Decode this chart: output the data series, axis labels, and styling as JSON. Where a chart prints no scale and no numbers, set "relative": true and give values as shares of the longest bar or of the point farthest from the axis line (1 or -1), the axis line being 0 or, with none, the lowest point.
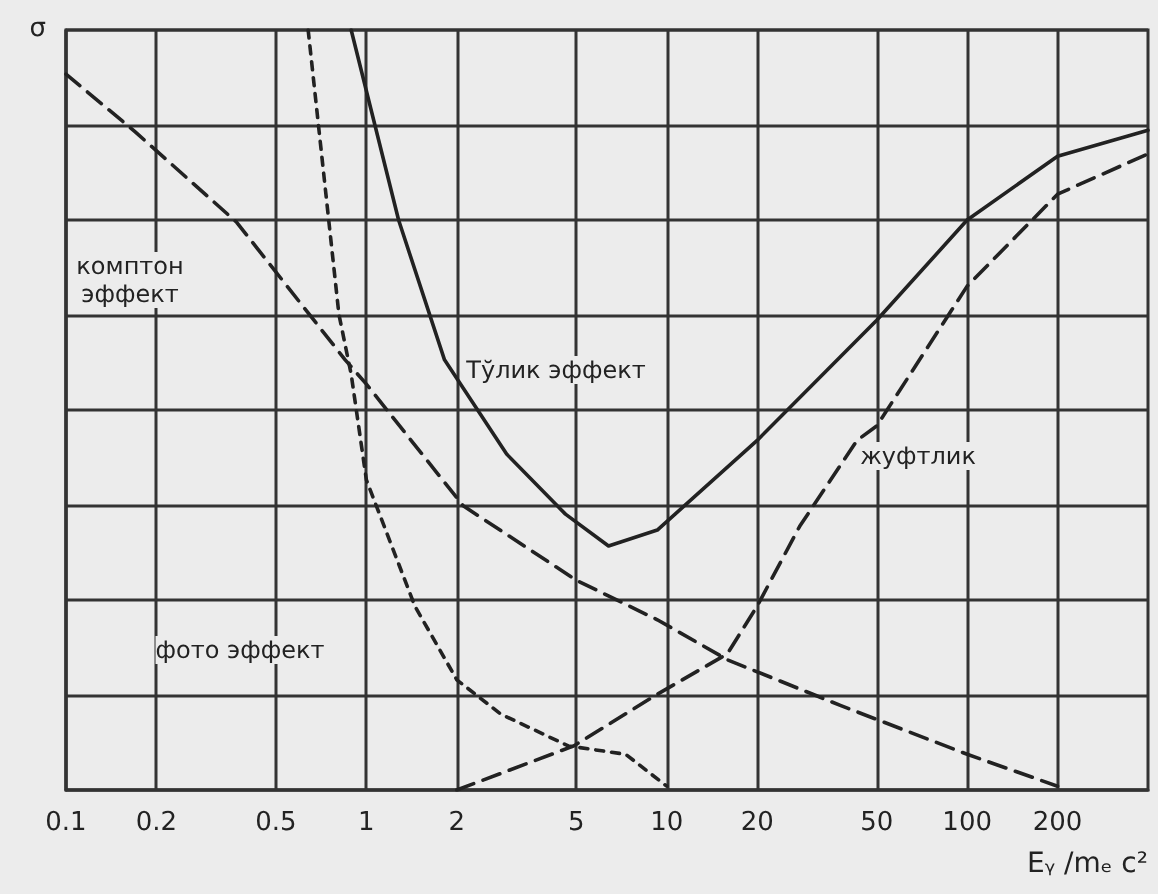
{
  "chart_data": {
    "type": "line",
    "relative": true,
    "xlabel": "Eᵧ /mₑ c²",
    "ylabel": "σ",
    "log": "x",
    "xlim": [
      0.1,
      400
    ],
    "xticks": [
      0.1,
      0.2,
      0.5,
      1,
      2,
      5,
      10,
      20,
      50,
      100,
      200
    ],
    "grid": true,
    "marker": "none",
    "series": [
      {
        "color": "#222222",
        "line_style": "solid",
        "x": [
          0.89,
          1.28,
          1.82,
          2.93,
          4.6,
          6.4,
          9.3,
          20,
          50,
          100,
          200,
          400
        ],
        "values": [
          1,
          0.75,
          0.566,
          0.442,
          0.363,
          0.321,
          0.342,
          0.46,
          0.618,
          0.75,
          0.834,
          0.868
        ]
      },
      {
        "color": "#222222",
        "line_style": "dashed",
        "x": [
          0.1,
          0.17,
          0.37,
          0.85,
          1,
          2.1,
          5,
          9.3,
          16,
          38,
          100,
          200
        ],
        "values": [
          0.942,
          0.866,
          0.747,
          0.566,
          0.534,
          0.374,
          0.276,
          0.224,
          0.171,
          0.111,
          0.047,
          0.005
        ]
      },
      {
        "color": "#222222",
        "line_style": "dotted",
        "x": [
          0.64,
          0.81,
          0.89,
          1,
          1.45,
          2,
          2.8,
          4.7,
          7.3,
          10
        ],
        "values": [
          1,
          0.626,
          0.547,
          0.408,
          0.242,
          0.145,
          0.1,
          0.058,
          0.047,
          0.005
        ]
      },
      {
        "color": "#222222",
        "line_style": "dashed",
        "x": [
          2,
          4.9,
          9.3,
          15.9,
          20,
          27.7,
          43,
          50,
          100,
          200,
          400
        ],
        "values": [
          0,
          0.058,
          0.126,
          0.179,
          0.242,
          0.347,
          0.46,
          0.479,
          0.663,
          0.784,
          0.837
        ]
      }
    ],
    "annotations": [
      "комптон\nэффект",
      "Тўлик эффект",
      "жуфтлик",
      "фото эффект"
    ]
  }
}
